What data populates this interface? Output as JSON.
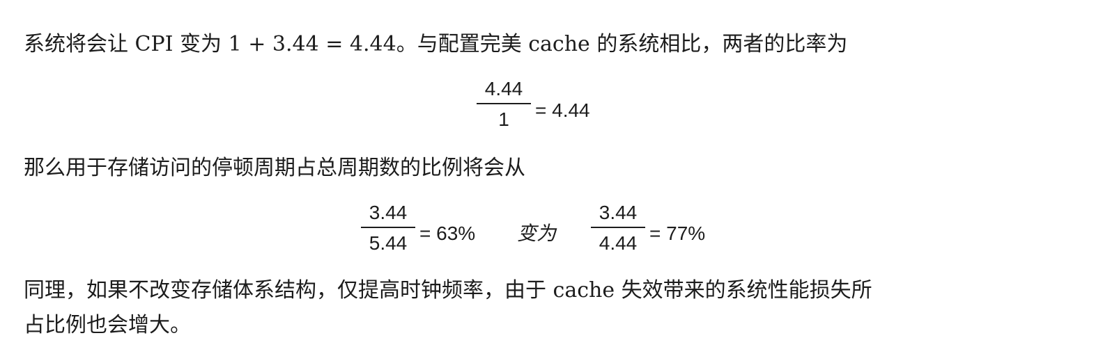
{
  "paragraphs": {
    "p1": "系统将会让 CPI 变为 1 + 3.44 = 4.44。与配置完美 cache 的系统相比，两者的比率为",
    "p2": "那么用于存储访问的停顿周期占总周期数的比例将会从",
    "p3": "同理，如果不改变存储体系结构，仅提高时钟频率，由于 cache 失效带来的系统性能损失所",
    "p4": "占比例也会增大。"
  },
  "equation1": {
    "numerator": "4.44",
    "denominator": "1",
    "result": "= 4.44"
  },
  "equation2": {
    "left": {
      "numerator": "3.44",
      "denominator": "5.44",
      "result": "= 63%"
    },
    "connector": "变为",
    "right": {
      "numerator": "3.44",
      "denominator": "4.44",
      "result": "= 77%"
    }
  }
}
